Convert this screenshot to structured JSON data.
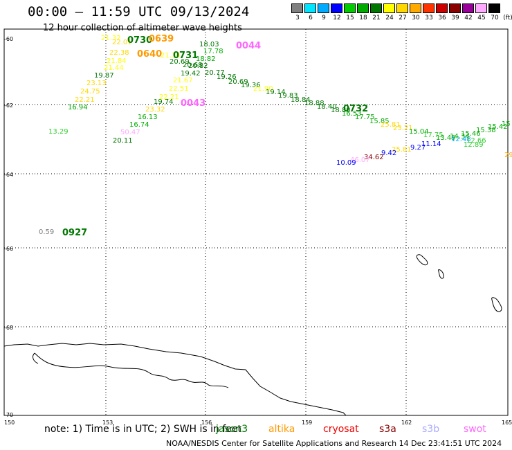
{
  "header": {
    "title": "00:00 – 11:59 UTC 09/13/2024",
    "subtitle": "12 hour collection of altimeter wave heights"
  },
  "scale": {
    "labels": [
      "3",
      "6",
      "9",
      "12",
      "15",
      "18",
      "21",
      "24",
      "27",
      "30",
      "33",
      "36",
      "39",
      "42",
      "45",
      "70",
      "(ft)"
    ],
    "colors": [
      "#808080",
      "#00e5ff",
      "#00aaff",
      "#0000ff",
      "#00cc00",
      "#00aa00",
      "#007700",
      "#ffff00",
      "#ffd700",
      "#ffaa00",
      "#ff3300",
      "#cc0000",
      "#880000",
      "#990099",
      "#ffaaff",
      "#000000"
    ]
  },
  "axes": {
    "lat_labels": [
      "-60",
      "-62",
      "-64",
      "-66",
      "-68",
      "-70"
    ],
    "lon_labels": [
      "150",
      "153",
      "156",
      "159",
      "162",
      "165"
    ]
  },
  "pass_labels": [
    {
      "text": "0730",
      "color": "#007700"
    },
    {
      "text": "0639",
      "color": "#ff9900"
    },
    {
      "text": "0640",
      "color": "#ff9900"
    },
    {
      "text": "0731",
      "color": "#007700"
    },
    {
      "text": "0044",
      "color": "#ff66ff"
    },
    {
      "text": "0043",
      "color": "#ff66ff"
    },
    {
      "text": "0732",
      "color": "#007700"
    },
    {
      "text": "0927",
      "color": "#007700"
    }
  ],
  "wave_labels": [
    {
      "text": "21.32",
      "color": "#ffff00"
    },
    {
      "text": "22.01",
      "color": "#ffd700"
    },
    {
      "text": "22.38",
      "color": "#ffd700"
    },
    {
      "text": "21.84",
      "color": "#ffff00"
    },
    {
      "text": "21.44",
      "color": "#ffff00"
    },
    {
      "text": "19.87",
      "color": "#007700"
    },
    {
      "text": "23.13",
      "color": "#ffd700"
    },
    {
      "text": "24.75",
      "color": "#ffd700"
    },
    {
      "text": "22.21",
      "color": "#ffd700"
    },
    {
      "text": "16.94",
      "color": "#00aa00"
    },
    {
      "text": "13.29",
      "color": "#33cc33"
    },
    {
      "text": "21.34",
      "color": "#ffff00"
    },
    {
      "text": "20.69",
      "color": "#007700"
    },
    {
      "text": "20.68",
      "color": "#007700"
    },
    {
      "text": "20.82",
      "color": "#007700"
    },
    {
      "text": "19.42",
      "color": "#007700"
    },
    {
      "text": "20.77",
      "color": "#007700"
    },
    {
      "text": "18.82",
      "color": "#00aa00"
    },
    {
      "text": "17.78",
      "color": "#00aa00"
    },
    {
      "text": "18.03",
      "color": "#007700"
    },
    {
      "text": "21.67",
      "color": "#ffff00"
    },
    {
      "text": "22.51",
      "color": "#ffff00"
    },
    {
      "text": "22.21",
      "color": "#ffff00"
    },
    {
      "text": "19.74",
      "color": "#007700"
    },
    {
      "text": "23.32",
      "color": "#ffd700"
    },
    {
      "text": "16.13",
      "color": "#00aa00"
    },
    {
      "text": "16.74",
      "color": "#00aa00"
    },
    {
      "text": "50.47",
      "color": "#ffaaff"
    },
    {
      "text": "20.11",
      "color": "#007700"
    },
    {
      "text": "19.26",
      "color": "#007700"
    },
    {
      "text": "20.69",
      "color": "#007700"
    },
    {
      "text": "19.36",
      "color": "#007700"
    },
    {
      "text": "21.90",
      "color": "#ffff00"
    },
    {
      "text": "19.14",
      "color": "#007700"
    },
    {
      "text": "19.83",
      "color": "#007700"
    },
    {
      "text": "18.84",
      "color": "#007700"
    },
    {
      "text": "18.88",
      "color": "#007700"
    },
    {
      "text": "18.40",
      "color": "#007700"
    },
    {
      "text": "18.80",
      "color": "#007700"
    },
    {
      "text": "16.53",
      "color": "#00aa00"
    },
    {
      "text": "17.75",
      "color": "#00aa00"
    },
    {
      "text": "15.85",
      "color": "#00aa00"
    },
    {
      "text": "25.81",
      "color": "#ffd700"
    },
    {
      "text": "23.21",
      "color": "#ffd700"
    },
    {
      "text": "15.04",
      "color": "#00aa00"
    },
    {
      "text": "17.75",
      "color": "#33cc33"
    },
    {
      "text": "11.14",
      "color": "#0000ff"
    },
    {
      "text": "13.49",
      "color": "#00aa00"
    },
    {
      "text": "12.48",
      "color": "#00aaff"
    },
    {
      "text": "14.34",
      "color": "#00aa00"
    },
    {
      "text": "12.66",
      "color": "#33cc33"
    },
    {
      "text": "12.89",
      "color": "#33cc33"
    },
    {
      "text": "15.46",
      "color": "#00aa00"
    },
    {
      "text": "15.38",
      "color": "#00aa00"
    },
    {
      "text": "15.42",
      "color": "#00aa00"
    },
    {
      "text": "15",
      "color": "#00aa00"
    },
    {
      "text": "29",
      "color": "#ffaa00"
    },
    {
      "text": "9.27",
      "color": "#0000ff"
    },
    {
      "text": "25.81",
      "color": "#ffd700"
    },
    {
      "text": "9.42",
      "color": "#0000ff"
    },
    {
      "text": "34.62",
      "color": "#880000"
    },
    {
      "text": "46.07",
      "color": "#ffaaff"
    },
    {
      "text": "10.09",
      "color": "#0000ff"
    },
    {
      "text": "0.59",
      "color": "#808080"
    }
  ],
  "note": "note: 1) Time is in UTC; 2) SWH is in feet",
  "legend": [
    {
      "label": "jason3",
      "color": "#007700"
    },
    {
      "label": "altika",
      "color": "#ff9900"
    },
    {
      "label": "cryosat",
      "color": "#ee0000"
    },
    {
      "label": "s3a",
      "color": "#880000"
    },
    {
      "label": "s3b",
      "color": "#aaaaff"
    },
    {
      "label": "swot",
      "color": "#ff66ff"
    }
  ],
  "footer": "NOAA/NESDIS Center for Satellite Applications and Research    14 Dec 23:41:51 UTC 2024"
}
